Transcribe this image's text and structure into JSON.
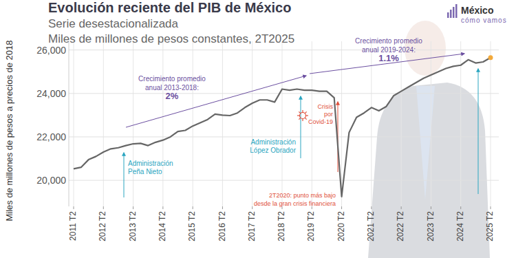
{
  "chart_data": {
    "type": "line",
    "title": "Evolución reciente del PIB de México",
    "subtitle": [
      "Serie desestacionalizada",
      "Miles de millones de pesos constantes, 2T2025"
    ],
    "y_label": "Miles de millones de pesos a precios de 2018",
    "logo": {
      "name": "México",
      "tagline": "cómo vamos"
    },
    "categories": [
      "2011 T2",
      null,
      null,
      null,
      "2012 T2",
      null,
      null,
      null,
      "2013 T2",
      null,
      null,
      null,
      "2014 T2",
      null,
      null,
      null,
      "2015 T2",
      null,
      null,
      null,
      "2016 T2",
      null,
      null,
      null,
      "2017 T2",
      null,
      null,
      null,
      "2018 T2",
      null,
      null,
      null,
      "2019 T2",
      null,
      null,
      null,
      "2020 T2",
      null,
      null,
      null,
      "2021 T2",
      null,
      null,
      null,
      "2022 T2",
      null,
      null,
      null,
      "2023 T2",
      null,
      null,
      null,
      "2024 T2",
      null,
      null,
      null,
      "2025 T2"
    ],
    "series": [
      {
        "name": "PIB",
        "color": "#666666",
        "values": [
          20530,
          20600,
          20950,
          21100,
          21300,
          21450,
          21500,
          21600,
          21680,
          21700,
          21600,
          21750,
          21850,
          22000,
          22250,
          22300,
          22500,
          22650,
          22800,
          23050,
          23000,
          22980,
          23100,
          23350,
          23550,
          23700,
          23700,
          23600,
          24200,
          24150,
          24200,
          24150,
          24150,
          24100,
          24100,
          23800,
          19250,
          22200,
          22900,
          23100,
          23350,
          23200,
          23400,
          23900,
          24100,
          24300,
          24500,
          24700,
          24850,
          25000,
          25150,
          25250,
          25300,
          25550,
          25400,
          25450,
          25650
        ]
      }
    ],
    "ylim": [
      18800,
      26400
    ],
    "yticks": [
      {
        "value": 20000,
        "label": "20,000"
      },
      {
        "value": 22000,
        "label": "22,000"
      },
      {
        "value": 24000,
        "label": "24,000"
      },
      {
        "value": 26000,
        "label": "26,000"
      }
    ],
    "grid": true,
    "annotations": [
      {
        "lines": [
          "Crecimiento promedio",
          "anual 2013-2018:",
          "2%"
        ],
        "color": "#6b4fa0"
      },
      {
        "lines": [
          "Crecimiento promedio",
          "anual 2019-2024:",
          "1.1%"
        ],
        "color": "#6b4fa0"
      },
      {
        "lines": [
          "Administración",
          "Peña Nieto"
        ],
        "color": "#2aa5c0"
      },
      {
        "lines": [
          "Administración",
          "López Obrador"
        ],
        "color": "#2aa5c0"
      },
      {
        "lines": [
          "Crisis",
          "por",
          "Covid-19"
        ],
        "color": "#e0503c"
      },
      {
        "lines": [
          "2T2020: punto más bajo",
          "desde la gran crisis financiera"
        ],
        "color": "#e0503c"
      }
    ]
  }
}
